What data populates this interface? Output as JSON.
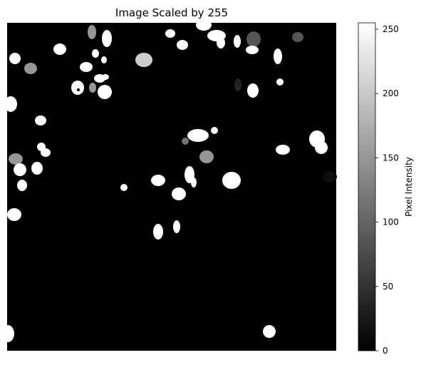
{
  "chart_data": {
    "type": "heatmap",
    "title": "Image Scaled by 255",
    "xlabel": "",
    "ylabel": "",
    "axis_visible": false,
    "colormap": "gray",
    "colorbar": {
      "label": "Pixel Intensity",
      "min": 0,
      "max": 255,
      "ticks": [
        0,
        50,
        100,
        150,
        200,
        250
      ],
      "tick_labels": [
        "0",
        "50",
        "100",
        "150",
        "200",
        "250"
      ]
    },
    "background_value": 0,
    "blob_value_counts": {
      "255": 60,
      "205": 2,
      "150": 4,
      "115": 2,
      "85": 2,
      "35": 2,
      "15": 1
    }
  }
}
